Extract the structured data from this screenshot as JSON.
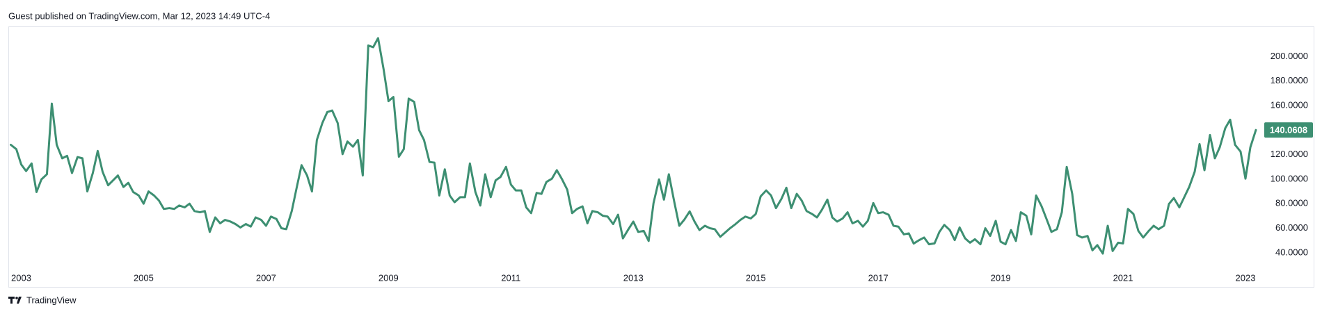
{
  "header": "Guest published on TradingView.com, Mar 12, 2023 14:49 UTC-4",
  "footer": "TradingView",
  "chart_data": {
    "type": "line",
    "color": "#3d8f72",
    "grid": false,
    "xlim": [
      2002.79,
      2023.25
    ],
    "xticks": [
      2003,
      2005,
      2007,
      2009,
      2011,
      2013,
      2015,
      2017,
      2019,
      2021,
      2023
    ],
    "ylim": [
      26.3,
      224
    ],
    "yticks": [
      {
        "value": 40,
        "label": "40.0000"
      },
      {
        "value": 60,
        "label": "60.0000"
      },
      {
        "value": 80,
        "label": "80.0000"
      },
      {
        "value": 100,
        "label": "100.0000"
      },
      {
        "value": 120,
        "label": "120.0000"
      },
      {
        "value": 140,
        "label": "140.0000"
      },
      {
        "value": 160,
        "label": "160.0000"
      },
      {
        "value": 180,
        "label": "180.0000"
      },
      {
        "value": 200,
        "label": "200.0000"
      }
    ],
    "x": [
      2002.83,
      2002.92,
      2003,
      2003.08,
      2003.17,
      2003.25,
      2003.33,
      2003.42,
      2003.5,
      2003.58,
      2003.67,
      2003.75,
      2003.83,
      2003.92,
      2004,
      2004.08,
      2004.17,
      2004.25,
      2004.33,
      2004.42,
      2004.5,
      2004.58,
      2004.67,
      2004.75,
      2004.83,
      2004.92,
      2005,
      2005.08,
      2005.17,
      2005.25,
      2005.33,
      2005.42,
      2005.5,
      2005.58,
      2005.67,
      2005.75,
      2005.83,
      2005.92,
      2006,
      2006.08,
      2006.17,
      2006.25,
      2006.33,
      2006.42,
      2006.5,
      2006.58,
      2006.67,
      2006.75,
      2006.83,
      2006.92,
      2007,
      2007.08,
      2007.17,
      2007.25,
      2007.33,
      2007.42,
      2007.5,
      2007.58,
      2007.67,
      2007.75,
      2007.83,
      2007.92,
      2008,
      2008.08,
      2008.17,
      2008.25,
      2008.33,
      2008.42,
      2008.5,
      2008.58,
      2008.67,
      2008.75,
      2008.83,
      2008.92,
      2009,
      2009.08,
      2009.17,
      2009.25,
      2009.33,
      2009.42,
      2009.5,
      2009.58,
      2009.67,
      2009.75,
      2009.83,
      2009.92,
      2010,
      2010.08,
      2010.17,
      2010.25,
      2010.33,
      2010.42,
      2010.5,
      2010.58,
      2010.67,
      2010.75,
      2010.83,
      2010.92,
      2011,
      2011.08,
      2011.17,
      2011.25,
      2011.33,
      2011.42,
      2011.5,
      2011.58,
      2011.67,
      2011.75,
      2011.83,
      2011.92,
      2012,
      2012.08,
      2012.17,
      2012.25,
      2012.33,
      2012.42,
      2012.5,
      2012.58,
      2012.67,
      2012.75,
      2012.83,
      2012.92,
      2013,
      2013.08,
      2013.17,
      2013.25,
      2013.33,
      2013.42,
      2013.5,
      2013.58,
      2013.67,
      2013.75,
      2013.83,
      2013.92,
      2014,
      2014.08,
      2014.17,
      2014.25,
      2014.33,
      2014.42,
      2014.5,
      2014.58,
      2014.67,
      2014.75,
      2014.83,
      2014.92,
      2015,
      2015.08,
      2015.17,
      2015.25,
      2015.33,
      2015.42,
      2015.5,
      2015.58,
      2015.67,
      2015.75,
      2015.83,
      2015.92,
      2016,
      2016.08,
      2016.17,
      2016.25,
      2016.33,
      2016.42,
      2016.5,
      2016.58,
      2016.67,
      2016.75,
      2016.83,
      2016.92,
      2017,
      2017.08,
      2017.17,
      2017.25,
      2017.33,
      2017.42,
      2017.5,
      2017.58,
      2017.67,
      2017.75,
      2017.83,
      2017.92,
      2018,
      2018.08,
      2018.17,
      2018.25,
      2018.33,
      2018.42,
      2018.5,
      2018.58,
      2018.67,
      2018.75,
      2018.83,
      2018.92,
      2019,
      2019.08,
      2019.17,
      2019.25,
      2019.33,
      2019.42,
      2019.5,
      2019.58,
      2019.67,
      2019.75,
      2019.83,
      2019.92,
      2020,
      2020.08,
      2020.17,
      2020.25,
      2020.33,
      2020.42,
      2020.5,
      2020.58,
      2020.67,
      2020.75,
      2020.83,
      2020.92,
      2021,
      2021.08,
      2021.17,
      2021.25,
      2021.33,
      2021.42,
      2021.5,
      2021.58,
      2021.67,
      2021.75,
      2021.83,
      2021.92,
      2022,
      2022.08,
      2022.17,
      2022.25,
      2022.33,
      2022.42,
      2022.5,
      2022.58,
      2022.67,
      2022.75,
      2022.83,
      2022.92,
      2023,
      2023.08,
      2023.17
    ],
    "values": [
      128,
      124.5,
      112,
      106.6,
      112.8,
      89.5,
      99.8,
      104,
      161.6,
      128,
      117,
      119,
      105,
      118,
      117,
      90,
      105,
      123,
      106,
      95,
      99,
      103,
      93.6,
      97,
      89.5,
      86.7,
      80,
      90,
      86.7,
      82.6,
      75.7,
      76.4,
      75.7,
      78.5,
      77,
      80,
      74,
      73,
      74,
      57,
      68.8,
      64,
      66.8,
      65.4,
      63.4,
      60.6,
      63.4,
      61.3,
      68.8,
      66.8,
      62,
      69.5,
      67.5,
      60,
      59.2,
      74,
      93,
      111.4,
      103,
      90,
      132,
      145.8,
      154.7,
      156,
      145.8,
      120.4,
      130.7,
      126.5,
      132,
      103,
      209,
      207.6,
      215,
      189.7,
      163.6,
      167,
      118.3,
      124.5,
      165.7,
      163,
      140,
      132,
      114,
      113.5,
      86.7,
      108,
      86.7,
      81.2,
      85.3,
      85.3,
      112.8,
      89.5,
      78.5,
      104,
      85.3,
      99,
      101.8,
      110,
      95.6,
      90.8,
      90.8,
      77,
      72.3,
      88.8,
      88,
      97.7,
      100.4,
      107.3,
      100.4,
      91.5,
      72.3,
      75.7,
      77.8,
      64,
      74,
      73,
      70.2,
      69.5,
      63.4,
      71,
      51.7,
      59.2,
      65.4,
      57,
      57.8,
      49.6,
      80.5,
      99.8,
      83.3,
      104,
      81.2,
      62,
      66.8,
      73.7,
      65.4,
      58.5,
      62,
      60,
      59.2,
      53,
      56.5,
      60,
      63.4,
      66.8,
      69.5,
      68,
      71.6,
      86,
      90.8,
      86.7,
      76.4,
      84,
      93,
      76.4,
      88,
      82.6,
      74,
      71.6,
      68.8,
      75,
      83.3,
      68.8,
      65.4,
      68,
      73,
      64,
      66,
      61.3,
      66,
      80.5,
      72.3,
      73,
      71,
      62,
      61.3,
      55,
      55.8,
      47.5,
      50.3,
      52.4,
      46.9,
      47.6,
      57,
      62.7,
      58.5,
      50.3,
      60.6,
      51.7,
      48.2,
      51,
      46.9,
      60,
      53.7,
      66,
      49,
      46.9,
      58.5,
      49.6,
      73,
      70.2,
      55,
      86.7,
      77.8,
      67.5,
      57,
      59.2,
      73,
      110,
      88,
      54.4,
      52.4,
      53.7,
      42,
      46.2,
      39.3,
      62,
      41.4,
      48.2,
      47.6,
      75.7,
      71.6,
      57.8,
      52.4,
      57.8,
      62,
      59.2,
      62,
      79.8,
      84.6,
      77,
      85.3,
      93.6,
      106,
      128.6,
      107.3,
      136,
      117,
      126,
      141.6,
      148.5,
      128,
      122.5,
      100.4,
      126,
      140.0608
    ]
  }
}
